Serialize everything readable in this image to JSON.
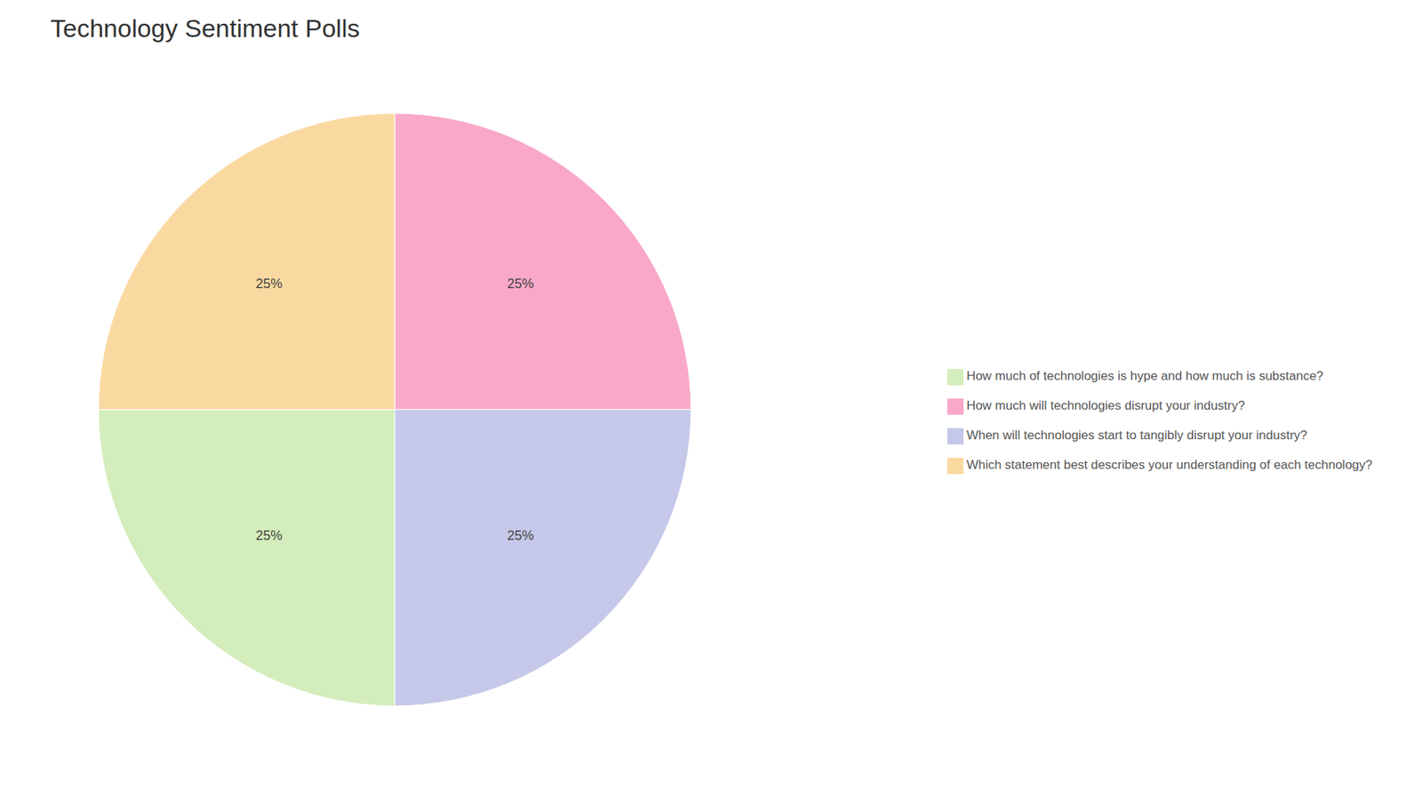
{
  "chart_data": {
    "type": "pie",
    "title": "Technology Sentiment Polls",
    "categories": [
      "How much will technologies disrupt your industry?",
      "When will technologies start to tangibly disrupt your industry?",
      "How much of technologies is hype and how much is substance?",
      "Which statement best describes your understanding of each technology?"
    ],
    "values": [
      25,
      25,
      25,
      25
    ],
    "value_labels": [
      "25%",
      "25%",
      "25%",
      "25%"
    ],
    "colors": [
      "#F9A8C9",
      "#C5C8E8",
      "#D4EDBC",
      "#FAD9A1"
    ],
    "data_labels": true,
    "legend": "right"
  }
}
